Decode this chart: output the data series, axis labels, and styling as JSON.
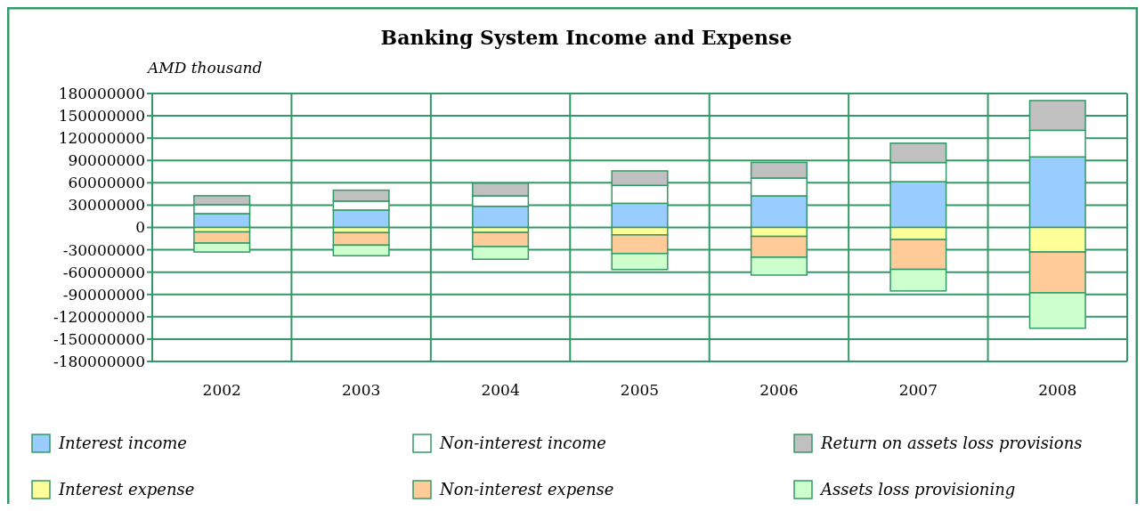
{
  "chart_data": {
    "type": "bar",
    "title": "Banking System Income and Expense",
    "ylabel": "AMD thousand",
    "categories": [
      "2002",
      "2003",
      "2004",
      "2005",
      "2006",
      "2007",
      "2008"
    ],
    "stacked": true,
    "series": [
      {
        "name": "Interest income",
        "color": "#99ccff",
        "values": [
          18600000,
          23400000,
          28500000,
          32500000,
          42400000,
          61500000,
          94800000
        ]
      },
      {
        "name": "Non-interest income",
        "color": "#ffffff",
        "values": [
          12000000,
          12000000,
          14000000,
          24000000,
          24000000,
          25700000,
          35700000
        ]
      },
      {
        "name": "Return on assets loss provisions",
        "color": "#c0c0c0",
        "values": [
          12000000,
          14700000,
          17000000,
          19500000,
          21000000,
          26000000,
          40000000
        ]
      },
      {
        "name": "Interest expense",
        "color": "#ffff99",
        "values": [
          -6000000,
          -7000000,
          -6700000,
          -10000000,
          -12000000,
          -16300000,
          -33000000
        ]
      },
      {
        "name": "Non-interest expense",
        "color": "#ffcc99",
        "values": [
          -15000000,
          -16800000,
          -19000000,
          -25000000,
          -28000000,
          -40000000,
          -54800000
        ]
      },
      {
        "name": "Assets loss provisioning",
        "color": "#ccffcc",
        "values": [
          -12000000,
          -14200000,
          -17000000,
          -21500000,
          -24000000,
          -29000000,
          -47600000
        ]
      }
    ],
    "ylim": [
      -180000000,
      180000000
    ],
    "yticks": [
      -180000000,
      -150000000,
      -120000000,
      -90000000,
      -60000000,
      -30000000,
      0,
      30000000,
      60000000,
      90000000,
      120000000,
      150000000,
      180000000
    ],
    "grid": true,
    "legend": "bottom"
  }
}
